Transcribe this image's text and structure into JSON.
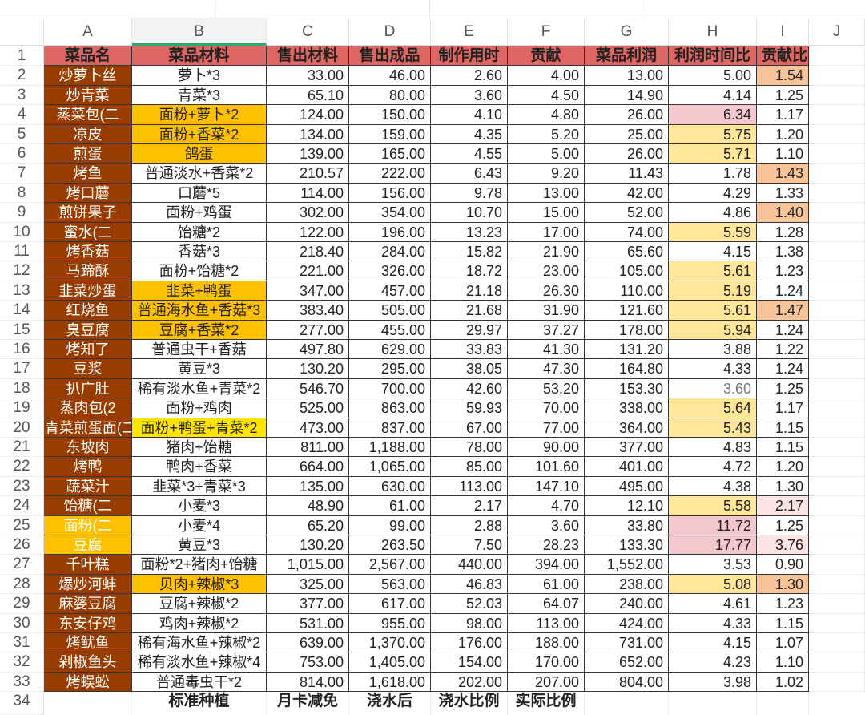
{
  "columns": [
    "A",
    "B",
    "C",
    "D",
    "E",
    "F",
    "G",
    "H",
    "I",
    "J"
  ],
  "selected_column": "B",
  "colors": {
    "header_bg": "#de6663",
    "name_bg": "#993c00",
    "orange": "#ffc000",
    "yellow": "#ffe400",
    "h_yellow": "#ffe699",
    "h_pink": "#f4c7ce",
    "i_orange": "#f8c59a",
    "i_lightpink": "#fde4e4"
  },
  "header": [
    "菜品名",
    "菜品材料",
    "售出材料",
    "售出成品",
    "制作用时",
    "贡献",
    "菜品利润",
    "利润时间比",
    "贡献比"
  ],
  "rows": [
    {
      "n": "2",
      "v": [
        "炒萝卜丝",
        "萝卜*3",
        "33.00",
        "46.00",
        "2.60",
        "4.00",
        "13.00",
        "5.00",
        "1.54"
      ],
      "hl": {
        "I": "i_orange"
      }
    },
    {
      "n": "3",
      "v": [
        "炒青菜",
        "青菜*3",
        "65.10",
        "80.00",
        "3.60",
        "4.50",
        "14.90",
        "4.14",
        "1.25"
      ],
      "hl": {}
    },
    {
      "n": "4",
      "v": [
        "蒸菜包(二",
        "面粉+萝卜*2",
        "124.00",
        "150.00",
        "4.10",
        "4.80",
        "26.00",
        "6.34",
        "1.17"
      ],
      "hl": {
        "B": "orange",
        "H": "h_pink"
      }
    },
    {
      "n": "5",
      "v": [
        "凉皮",
        "面粉+香菜*2",
        "134.00",
        "159.00",
        "4.35",
        "5.20",
        "25.00",
        "5.75",
        "1.20"
      ],
      "hl": {
        "B": "orange",
        "H": "h_yellow"
      }
    },
    {
      "n": "6",
      "v": [
        "煎蛋",
        "鸽蛋",
        "139.00",
        "165.00",
        "4.55",
        "5.00",
        "26.00",
        "5.71",
        "1.10"
      ],
      "hl": {
        "B": "orange",
        "H": "h_yellow"
      }
    },
    {
      "n": "7",
      "v": [
        "烤鱼",
        "普通淡水+香菜*2",
        "210.57",
        "222.00",
        "6.43",
        "9.20",
        "11.43",
        "1.78",
        "1.43"
      ],
      "hl": {
        "I": "i_orange"
      }
    },
    {
      "n": "8",
      "v": [
        "烤口蘑",
        "口蘑*5",
        "114.00",
        "156.00",
        "9.78",
        "13.00",
        "42.00",
        "4.29",
        "1.33"
      ],
      "hl": {}
    },
    {
      "n": "9",
      "v": [
        "煎饼果子",
        "面粉+鸡蛋",
        "302.00",
        "354.00",
        "10.70",
        "15.00",
        "52.00",
        "4.86",
        "1.40"
      ],
      "hl": {
        "I": "i_orange"
      }
    },
    {
      "n": "10",
      "v": [
        "蜜水(二",
        "饴糖*2",
        "122.00",
        "196.00",
        "13.23",
        "17.00",
        "74.00",
        "5.59",
        "1.28"
      ],
      "hl": {
        "H": "h_yellow"
      }
    },
    {
      "n": "11",
      "v": [
        "烤香菇",
        "香菇*3",
        "218.40",
        "284.00",
        "15.82",
        "21.90",
        "65.60",
        "4.15",
        "1.38"
      ],
      "hl": {}
    },
    {
      "n": "12",
      "v": [
        "马蹄酥",
        "面粉+饴糖*2",
        "221.00",
        "326.00",
        "18.72",
        "23.00",
        "105.00",
        "5.61",
        "1.23"
      ],
      "hl": {
        "H": "h_yellow"
      }
    },
    {
      "n": "13",
      "v": [
        "韭菜炒蛋",
        "韭菜+鸭蛋",
        "347.00",
        "457.00",
        "21.18",
        "26.30",
        "110.00",
        "5.19",
        "1.24"
      ],
      "hl": {
        "B": "orange",
        "H": "h_yellow"
      }
    },
    {
      "n": "14",
      "v": [
        "红烧鱼",
        "普通海水鱼+香菇*3",
        "383.40",
        "505.00",
        "21.68",
        "31.90",
        "121.60",
        "5.61",
        "1.47"
      ],
      "hl": {
        "B": "orange",
        "H": "h_yellow",
        "I": "i_orange"
      }
    },
    {
      "n": "15",
      "v": [
        "臭豆腐",
        "豆腐+香菜*2",
        "277.00",
        "455.00",
        "29.97",
        "37.27",
        "178.00",
        "5.94",
        "1.24"
      ],
      "hl": {
        "B": "orange",
        "H": "h_yellow"
      }
    },
    {
      "n": "16",
      "v": [
        "烤知了",
        "普通虫干+香菇",
        "497.80",
        "629.00",
        "33.83",
        "41.30",
        "131.20",
        "3.88",
        "1.22"
      ],
      "hl": {}
    },
    {
      "n": "17",
      "v": [
        "豆浆",
        "黄豆*3",
        "130.20",
        "295.00",
        "38.05",
        "47.30",
        "164.80",
        "4.33",
        "1.24"
      ],
      "hl": {}
    },
    {
      "n": "18",
      "v": [
        "扒广肚",
        "稀有淡水鱼+青菜*2",
        "546.70",
        "700.00",
        "42.60",
        "53.20",
        "153.30",
        "3.60",
        "1.25"
      ],
      "hl": {}
    },
    {
      "n": "19",
      "v": [
        "蒸肉包(2",
        "面粉+鸡肉",
        "525.00",
        "863.00",
        "59.93",
        "70.00",
        "338.00",
        "5.64",
        "1.17"
      ],
      "hl": {
        "H": "h_yellow"
      }
    },
    {
      "n": "20",
      "v": [
        "青菜煎蛋面(二",
        "面粉+鸭蛋+青菜*2",
        "473.00",
        "837.00",
        "67.00",
        "77.00",
        "364.00",
        "5.43",
        "1.15"
      ],
      "hl": {
        "B": "yellow",
        "H": "h_yellow"
      }
    },
    {
      "n": "21",
      "v": [
        "东坡肉",
        "猪肉+饴糖",
        "811.00",
        "1,188.00",
        "78.00",
        "90.00",
        "377.00",
        "4.83",
        "1.15"
      ],
      "hl": {}
    },
    {
      "n": "22",
      "v": [
        "烤鸭",
        "鸭肉+香菜",
        "664.00",
        "1,065.00",
        "85.00",
        "101.60",
        "401.00",
        "4.72",
        "1.20"
      ],
      "hl": {}
    },
    {
      "n": "23",
      "v": [
        "蔬菜汁",
        "韭菜*3+青菜*3",
        "135.00",
        "630.00",
        "113.00",
        "147.10",
        "495.00",
        "4.38",
        "1.30"
      ],
      "hl": {}
    },
    {
      "n": "24",
      "v": [
        "饴糖(二",
        "小麦*3",
        "48.90",
        "61.00",
        "2.17",
        "4.70",
        "12.10",
        "5.58",
        "2.17"
      ],
      "hl": {
        "H": "h_yellow",
        "I": "i_lightpink"
      }
    },
    {
      "n": "25",
      "v": [
        "面粉(二",
        "小麦*4",
        "65.20",
        "99.00",
        "2.88",
        "3.60",
        "33.80",
        "11.72",
        "1.25"
      ],
      "hl": {
        "A": "orange",
        "H": "h_pink"
      }
    },
    {
      "n": "26",
      "v": [
        "豆腐",
        "黄豆*3",
        "130.20",
        "263.50",
        "7.50",
        "28.23",
        "133.30",
        "17.77",
        "3.76"
      ],
      "hl": {
        "A": "orange",
        "H": "h_pink",
        "I": "i_lightpink"
      }
    },
    {
      "n": "27",
      "v": [
        "千叶糕",
        "面粉*2+猪肉+饴糖",
        "1,015.00",
        "2,567.00",
        "440.00",
        "394.00",
        "1,552.00",
        "3.53",
        "0.90"
      ],
      "hl": {}
    },
    {
      "n": "28",
      "v": [
        "爆炒河蚌",
        "贝肉+辣椒*3",
        "325.00",
        "563.00",
        "46.83",
        "61.00",
        "238.00",
        "5.08",
        "1.30"
      ],
      "hl": {
        "B": "orange",
        "H": "h_yellow",
        "I": "i_orange"
      }
    },
    {
      "n": "29",
      "v": [
        "麻婆豆腐",
        "豆腐+辣椒*2",
        "377.00",
        "617.00",
        "52.03",
        "64.07",
        "240.00",
        "4.61",
        "1.23"
      ],
      "hl": {}
    },
    {
      "n": "30",
      "v": [
        "东安仔鸡",
        "鸡肉+辣椒*2",
        "531.00",
        "955.00",
        "98.00",
        "113.00",
        "424.00",
        "4.33",
        "1.15"
      ],
      "hl": {}
    },
    {
      "n": "31",
      "v": [
        "烤鱿鱼",
        "稀有海水鱼+辣椒*2",
        "639.00",
        "1,370.00",
        "176.00",
        "188.00",
        "731.00",
        "4.15",
        "1.07"
      ],
      "hl": {}
    },
    {
      "n": "32",
      "v": [
        "剁椒鱼头",
        "稀有淡水鱼+辣椒*4",
        "753.00",
        "1,405.00",
        "154.00",
        "170.00",
        "652.00",
        "4.23",
        "1.10"
      ],
      "hl": {}
    },
    {
      "n": "33",
      "v": [
        "烤蜈蚣",
        "普通毒虫干*2",
        "814.00",
        "1,618.00",
        "202.00",
        "207.00",
        "804.00",
        "3.98",
        "1.02"
      ],
      "hl": {}
    }
  ],
  "footer": {
    "n": "34",
    "v": [
      "",
      "标准种植",
      "月卡减免",
      "浇水后",
      "浇水比例",
      "实际比例",
      "",
      "",
      ""
    ]
  }
}
